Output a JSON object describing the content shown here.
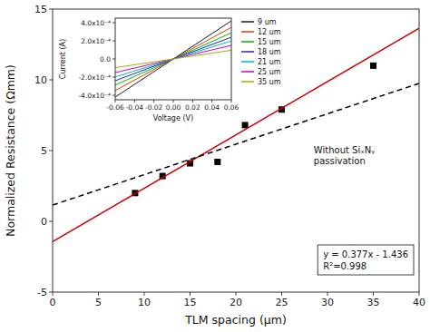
{
  "chart_data": [
    {
      "type": "scatter",
      "xlabel": "TLM spacing (μm)",
      "ylabel": "Normalized Resistance (Ωmm)",
      "xlim": [
        0,
        40
      ],
      "ylim": [
        -5,
        15
      ],
      "xticks": [
        0,
        5,
        10,
        15,
        20,
        25,
        30,
        35,
        40
      ],
      "yticks": [
        -5,
        0,
        5,
        10,
        15
      ],
      "series": [
        {
          "type": "scatter",
          "marker": "square",
          "color": "#000000",
          "x": [
            9,
            12,
            15,
            18,
            21,
            25,
            35
          ],
          "values": [
            2.0,
            3.2,
            4.1,
            4.2,
            6.8,
            7.9,
            11.0
          ]
        },
        {
          "type": "line",
          "color": "#cc0000",
          "x": [
            0,
            40
          ],
          "values": [
            -1.436,
            13.644
          ]
        },
        {
          "type": "line",
          "line_style": "dashed",
          "color": "#000000",
          "x": [
            0,
            40
          ],
          "values": [
            1.15,
            9.75
          ]
        }
      ],
      "annotations": [
        {
          "text": [
            "Without SiₓNᵧ",
            "passivation"
          ]
        },
        {
          "text": [
            "y = 0.377x - 1.436",
            "R²=0.998"
          ]
        }
      ]
    },
    {
      "type": "line",
      "xlabel": "Voltage (V)",
      "ylabel": "Current (A)",
      "x": [
        -0.06,
        0.06
      ],
      "xlim": [
        -0.06,
        0.06
      ],
      "ylim": [
        -0.00045,
        0.00045
      ],
      "xticks": [
        -0.06,
        -0.04,
        -0.02,
        {
          "value": 0,
          "label": "0.00"
        },
        0.02,
        0.04,
        0.06
      ],
      "yticks": [
        {
          "value": -0.0004,
          "label": "-4.0x10⁻⁴"
        },
        {
          "value": -0.0002,
          "label": "-2.0x10⁻⁴"
        },
        {
          "value": 0,
          "label": "0.0"
        },
        {
          "value": 0.0002,
          "label": "2.0x10⁻⁴"
        },
        {
          "value": 0.0004,
          "label": "4.0x10⁻⁴"
        }
      ],
      "legend": "right",
      "series": [
        {
          "name": "9 um",
          "color": "#1a1a1a",
          "values": [
            -0.00042,
            0.00042
          ]
        },
        {
          "name": "12 um",
          "color": "#cc4400",
          "values": [
            -0.000348,
            0.000348
          ]
        },
        {
          "name": "15 um",
          "color": "#00bb00",
          "values": [
            -0.000288,
            0.000288
          ]
        },
        {
          "name": "18 um",
          "color": "#2222cc",
          "values": [
            -0.00024,
            0.00024
          ]
        },
        {
          "name": "21 um",
          "color": "#00bbbb",
          "values": [
            -0.000198,
            0.000198
          ]
        },
        {
          "name": "25 um",
          "color": "#cc00cc",
          "values": [
            -0.00015,
            0.00015
          ]
        },
        {
          "name": "35 um",
          "color": "#aaaa00",
          "values": [
            -9.6e-05,
            9.6e-05
          ]
        }
      ]
    }
  ]
}
